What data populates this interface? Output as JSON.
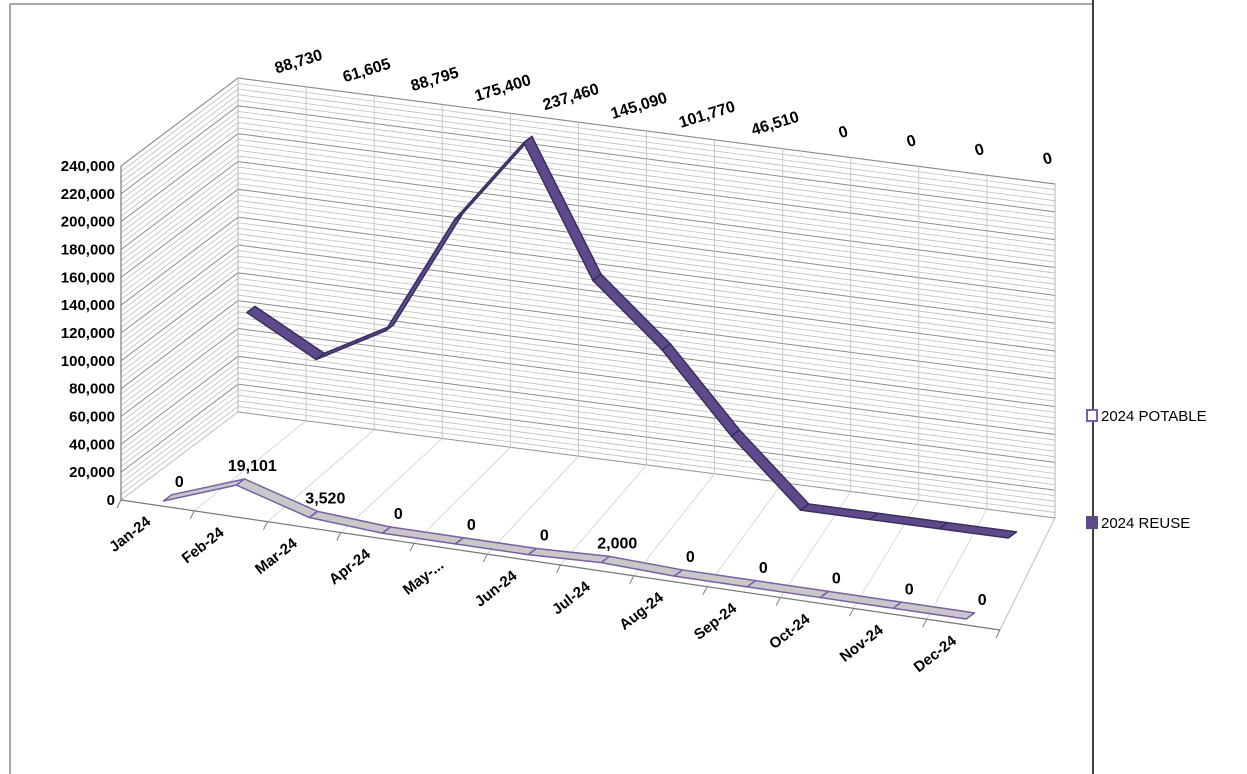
{
  "chart_data": {
    "type": "line",
    "style": "3d-ribbon",
    "categories": [
      "Jan-24",
      "Feb-24",
      "Mar-24",
      "Apr-24",
      "May-...",
      "Jun-24",
      "Jul-24",
      "Aug-24",
      "Sep-24",
      "Oct-24",
      "Nov-24",
      "Dec-24"
    ],
    "series": [
      {
        "name": "2024 POTABLE",
        "values": [
          0,
          19101,
          3520,
          0,
          0,
          0,
          2000,
          0,
          0,
          0,
          0,
          0
        ],
        "labels": [
          "0",
          "19,101",
          "3,520",
          "0",
          "0",
          "0",
          "2,000",
          "0",
          "0",
          "0",
          "0",
          "0"
        ],
        "color": "#ffffff",
        "fill": "#c8c8c8",
        "edge": "#7a5fa6"
      },
      {
        "name": "2024 REUSE",
        "values": [
          88730,
          61605,
          88795,
          175400,
          237460,
          145090,
          101770,
          46510,
          0,
          0,
          0,
          0
        ],
        "labels": [
          "88,730",
          "61,605",
          "88,795",
          "175,400",
          "237,460",
          "145,090",
          "101,770",
          "46,510",
          "0",
          "0",
          "0",
          "0"
        ],
        "color": "#5e4a8b",
        "edge": "#3b2d5f"
      }
    ],
    "y_ticks": [
      "0",
      "20,000",
      "40,000",
      "60,000",
      "80,000",
      "100,000",
      "120,000",
      "140,000",
      "160,000",
      "180,000",
      "200,000",
      "220,000",
      "240,000"
    ],
    "ylim": [
      0,
      240000
    ],
    "major_step": 20000,
    "minor_step": 4000,
    "grid": true,
    "legend": "right",
    "title": "",
    "xlabel": "",
    "ylabel": ""
  }
}
